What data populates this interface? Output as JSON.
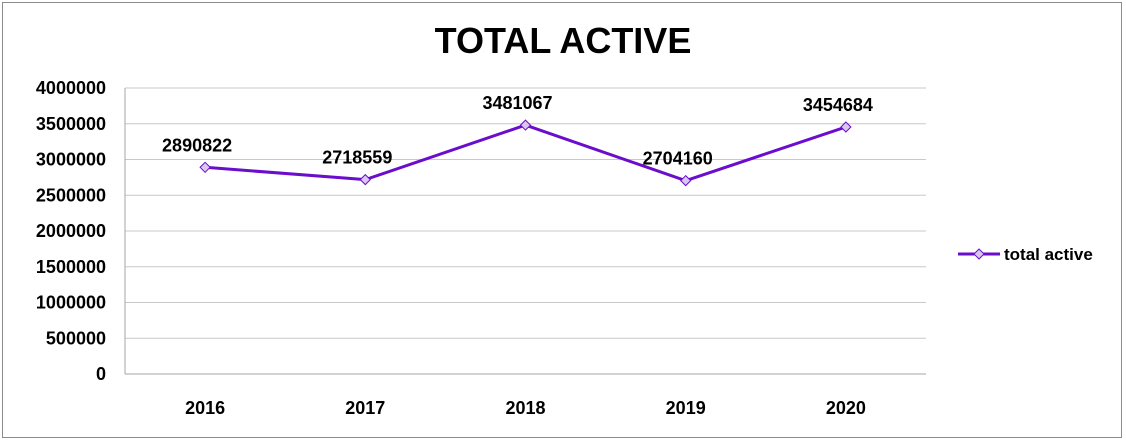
{
  "chart_data": {
    "type": "line",
    "title": "TOTAL ACTIVE",
    "categories": [
      "2016",
      "2017",
      "2018",
      "2019",
      "2020"
    ],
    "series": [
      {
        "name": "total active",
        "values": [
          2890822,
          2718559,
          3481067,
          2704160,
          3454684
        ]
      }
    ],
    "ylim": [
      0,
      4000000
    ],
    "yticks": [
      "0",
      "500000",
      "1000000",
      "1500000",
      "2000000",
      "2500000",
      "3000000",
      "3500000",
      "4000000"
    ],
    "grid": true,
    "legend": "right",
    "colors": {
      "line": "#6a0dcc",
      "marker_fill": "#d9c7f0",
      "grid": "#c8c8c8",
      "axis": "#a6a6a6"
    }
  }
}
